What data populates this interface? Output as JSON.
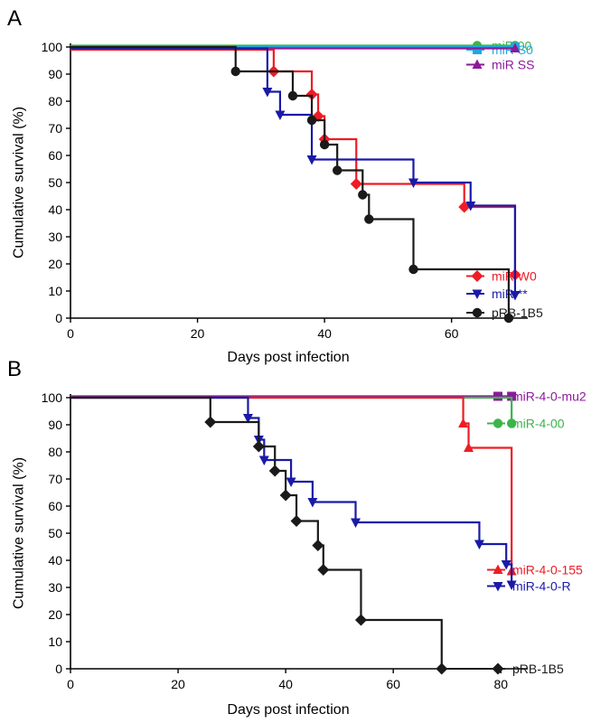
{
  "chart_data": [
    {
      "type": "line",
      "panel_label": "A",
      "xlabel": "Days post infection",
      "ylabel": "Cumulative survival (%)",
      "xlim": [
        0,
        72
      ],
      "ylim": [
        0,
        100
      ],
      "xticks": [
        0,
        20,
        40,
        60
      ],
      "yticks": [
        0,
        10,
        20,
        30,
        40,
        50,
        60,
        70,
        80,
        90,
        100
      ],
      "series": [
        {
          "name": "miR 00",
          "color": "#3cb44b",
          "marker": "circle",
          "x": [
            0,
            70
          ],
          "y": [
            100.5,
            100.5
          ],
          "marker_x": [
            70
          ],
          "marker_y": [
            100.5
          ],
          "legend_y": 100.5
        },
        {
          "name": "miR S0",
          "color": "#1fa8e0",
          "marker": "square",
          "x": [
            0,
            70
          ],
          "y": [
            100,
            100
          ],
          "marker_x": [
            70
          ],
          "marker_y": [
            100
          ],
          "legend_y": 99
        },
        {
          "name": "miR SS",
          "color": "#8b1a9a",
          "marker": "triangle-up",
          "x": [
            0,
            70
          ],
          "y": [
            99.5,
            99.5
          ],
          "marker_x": [
            70
          ],
          "marker_y": [
            99.5
          ],
          "legend_y": 93.5
        },
        {
          "name": "miR W0",
          "color": "#ee1c25",
          "marker": "diamond",
          "x": [
            0,
            32,
            38,
            39,
            40,
            45,
            62,
            70
          ],
          "y": [
            99,
            91,
            82.5,
            74.5,
            66,
            49.5,
            41,
            16
          ],
          "marker_x": [
            32,
            38,
            39,
            40,
            45,
            62,
            70
          ],
          "marker_y": [
            91,
            82.5,
            74.5,
            66,
            49.5,
            41,
            16
          ],
          "legend_y": 15.5
        },
        {
          "name": "miR **",
          "color": "#1a1aa8",
          "marker": "triangle-down",
          "x": [
            0,
            31,
            33,
            38,
            54,
            63,
            70
          ],
          "y": [
            99.5,
            83.5,
            75,
            58.5,
            50,
            41.5,
            8.5
          ],
          "marker_x": [
            31,
            33,
            38,
            54,
            63,
            70
          ],
          "marker_y": [
            83.5,
            75,
            58.5,
            50,
            41.5,
            8.5
          ],
          "legend_y": 9
        },
        {
          "name": "pRB-1B5",
          "color": "#1a1a1a",
          "marker": "circle",
          "x": [
            0,
            26,
            35,
            38,
            40,
            42,
            46,
            47,
            54,
            69
          ],
          "y": [
            100,
            91,
            82,
            73,
            64,
            54.5,
            45.5,
            36.5,
            18,
            0
          ],
          "marker_x": [
            26,
            35,
            38,
            40,
            42,
            46,
            47,
            54,
            69
          ],
          "marker_y": [
            91,
            82,
            73,
            64,
            54.5,
            45.5,
            36.5,
            18,
            0
          ],
          "legend_y": 2
        }
      ]
    },
    {
      "type": "line",
      "panel_label": "B",
      "xlabel": "Days post infection",
      "ylabel": "Cumulative survival (%)",
      "xlim": [
        0,
        85
      ],
      "ylim": [
        0,
        100
      ],
      "xticks": [
        0,
        20,
        40,
        60,
        80
      ],
      "yticks": [
        0,
        10,
        20,
        30,
        40,
        50,
        60,
        70,
        80,
        90,
        100
      ],
      "series": [
        {
          "name": "miR-4-0-mu2",
          "color": "#8b1a9a",
          "marker": "square",
          "x": [
            0,
            82
          ],
          "y": [
            100.5,
            100.5
          ],
          "marker_x": [
            82
          ],
          "marker_y": [
            100.5
          ],
          "legend_y": 100.5
        },
        {
          "name": "miR-4-00",
          "color": "#3cb44b",
          "marker": "circle",
          "x": [
            0,
            82,
            82
          ],
          "y": [
            100,
            100,
            90.5
          ],
          "marker_x": [
            82
          ],
          "marker_y": [
            90.5
          ],
          "legend_y": 90.5
        },
        {
          "name": "miR-4-0-155",
          "color": "#ee1c25",
          "marker": "triangle-up",
          "x": [
            0,
            73,
            74,
            82
          ],
          "y": [
            100,
            90.5,
            81.5,
            36
          ],
          "marker_x": [
            73,
            74,
            82
          ],
          "marker_y": [
            90.5,
            81.5,
            36
          ],
          "legend_y": 36.5
        },
        {
          "name": "miR-4-0-R",
          "color": "#1a1aa8",
          "marker": "triangle-down",
          "x": [
            0,
            33,
            35,
            36,
            41,
            45,
            53,
            76,
            81,
            82
          ],
          "y": [
            100,
            92.5,
            84.5,
            77,
            69,
            61.5,
            54,
            46,
            38.5,
            31
          ],
          "marker_x": [
            33,
            35,
            36,
            41,
            45,
            53,
            76,
            81,
            82
          ],
          "marker_y": [
            92.5,
            84.5,
            77,
            69,
            61.5,
            54,
            46,
            38.5,
            31
          ],
          "legend_y": 30.5
        },
        {
          "name": "pRB-1B5",
          "color": "#1a1a1a",
          "marker": "diamond",
          "x": [
            0,
            26,
            35,
            38,
            40,
            42,
            46,
            47,
            54,
            69
          ],
          "y": [
            100,
            91,
            82,
            73,
            64,
            54.5,
            45.5,
            36.5,
            18,
            0
          ],
          "marker_x": [
            26,
            35,
            38,
            40,
            42,
            46,
            47,
            54,
            69
          ],
          "marker_y": [
            91,
            82,
            73,
            64,
            54.5,
            45.5,
            36.5,
            18,
            0
          ],
          "legend_y": 0
        }
      ]
    }
  ]
}
